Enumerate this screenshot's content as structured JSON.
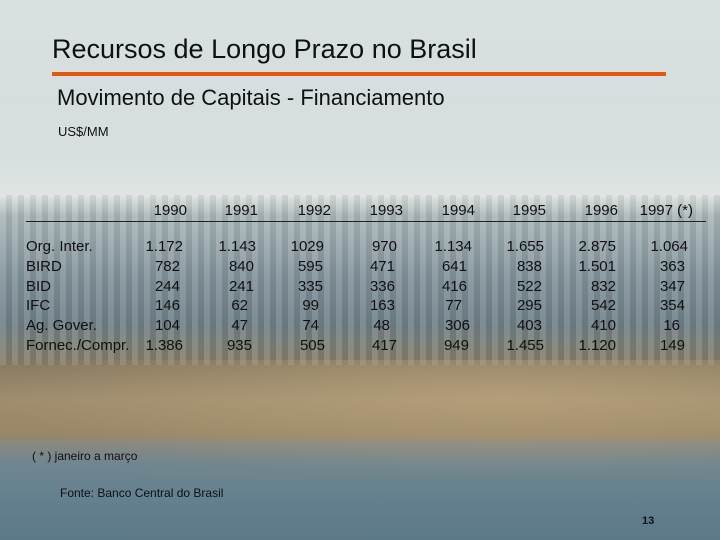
{
  "title": "Recursos de Longo Prazo no Brasil",
  "subtitle": "Movimento de Capitais - Financiamento",
  "unit": "US$/MM",
  "table": {
    "years": [
      "1990",
      "1991",
      "1992",
      "1993",
      "1994",
      "1995",
      "1996",
      "1997 (*)"
    ],
    "rows": [
      {
        "label": "Org. Inter.",
        "values": [
          "1.172",
          "1.143",
          "1029",
          "970",
          "1.134",
          "1.655",
          "2.875",
          "1.064"
        ]
      },
      {
        "label": "BIRD",
        "values": [
          "782",
          "840",
          "595",
          "471",
          "641",
          "838",
          "1.501",
          "363"
        ]
      },
      {
        "label": "BID",
        "values": [
          "244",
          "241",
          "335",
          "336",
          "416",
          "522",
          "832",
          "347"
        ]
      },
      {
        "label": "IFC",
        "values": [
          "146",
          "62",
          "99",
          "163",
          "77",
          "295",
          "542",
          "354"
        ]
      },
      {
        "label": "Ag. Gover.",
        "values": [
          "104",
          "47",
          "74",
          "48",
          "306",
          "403",
          "410",
          "16"
        ]
      },
      {
        "label": "Fornec./Compr.",
        "values": [
          "1.386",
          "935",
          "505",
          "417",
          "949",
          "1.455",
          "1.120",
          "149"
        ]
      }
    ]
  },
  "note": "( * ) janeiro a março",
  "source": "Fonte: Banco Central do Brasil",
  "page_number": "13",
  "colors": {
    "title_rule": "#e4570e",
    "text": "#101010"
  }
}
